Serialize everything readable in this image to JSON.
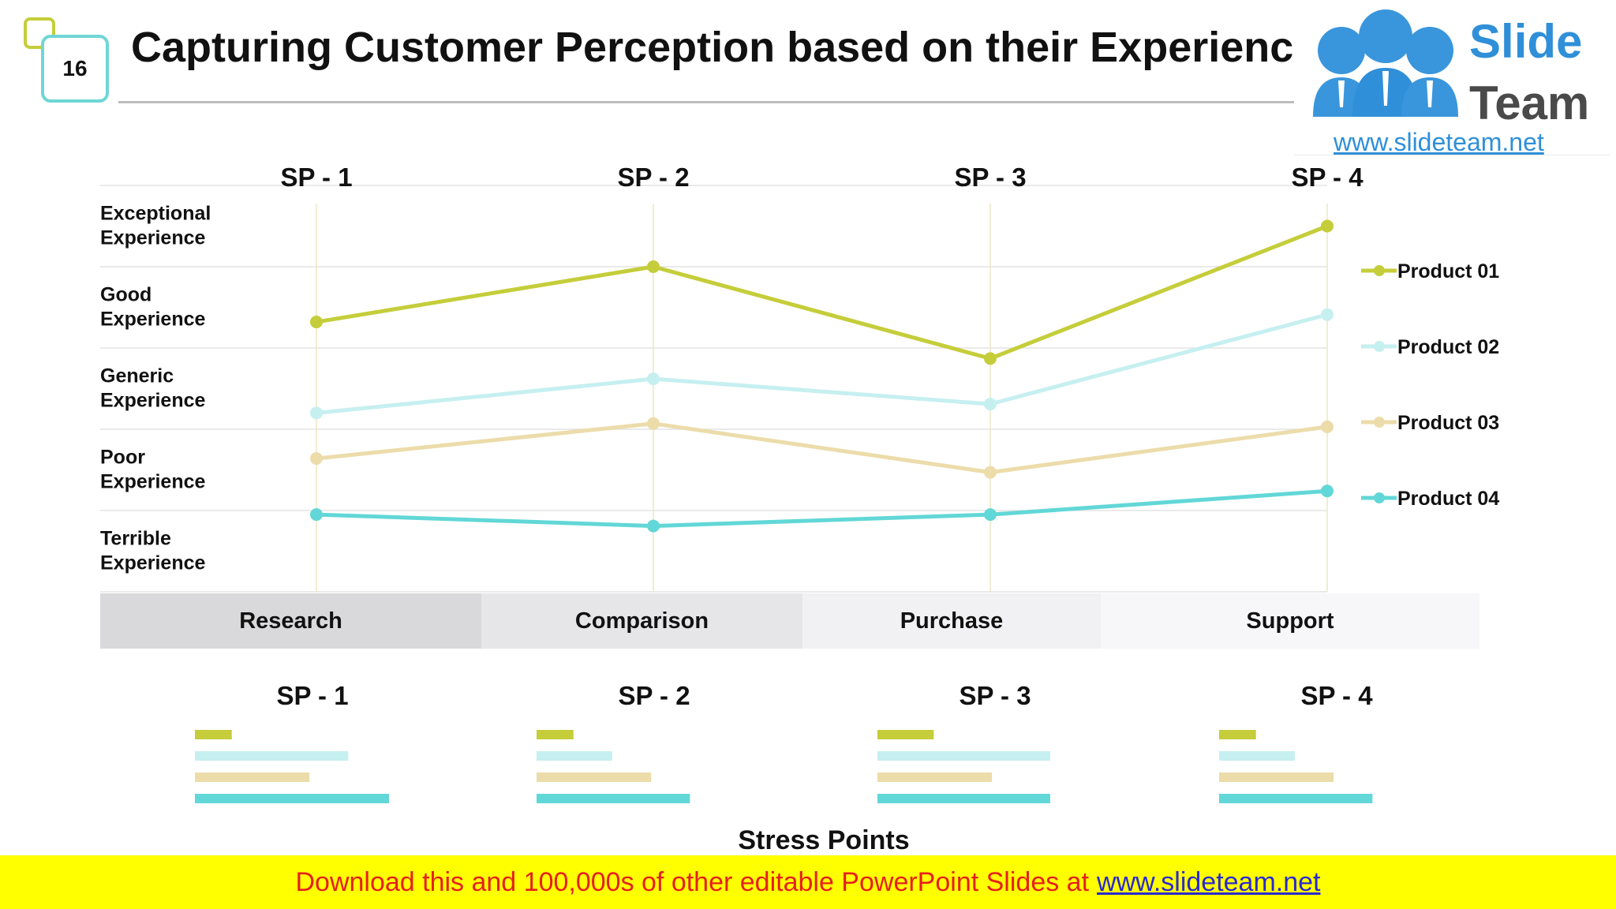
{
  "slide": {
    "number": "16",
    "title": "Capturing Customer Perception based on their Experience"
  },
  "logo": {
    "brand_top": "Slide",
    "brand_bottom": "Team",
    "url": "www.slideteam.net",
    "icon": "three-people-icon"
  },
  "banner": {
    "text": "Download this and 100,000s of other editable PowerPoint Slides at",
    "link": "www.slideteam.net"
  },
  "stages": [
    "Research",
    "Comparison",
    "Purchase",
    "Support"
  ],
  "stage_colors": [
    "#d9d9db",
    "#e6e6e9",
    "#f1f1f3",
    "#f7f7f9"
  ],
  "chart_data": [
    {
      "type": "line",
      "title": "",
      "categories": [
        "SP - 1",
        "SP - 2",
        "SP - 3",
        "SP - 4"
      ],
      "y_categories": [
        "Terrible Experience",
        "Poor Experience",
        "Generic Experience",
        "Good Experience",
        "Exceptional Experience"
      ],
      "ylim": [
        0,
        5
      ],
      "legend_position": "right",
      "series": [
        {
          "name": "Product 01",
          "color": "#c5cd3a",
          "values": [
            3.32,
            4.0,
            2.87,
            4.5
          ]
        },
        {
          "name": "Product 02",
          "color": "#c6eff0",
          "values": [
            2.2,
            2.62,
            2.31,
            3.41
          ]
        },
        {
          "name": "Product 03",
          "color": "#ecdcaa",
          "values": [
            1.64,
            2.07,
            1.47,
            2.03
          ]
        },
        {
          "name": "Product 04",
          "color": "#62d7d7",
          "values": [
            0.95,
            0.81,
            0.95,
            1.24
          ]
        }
      ]
    },
    {
      "type": "bar",
      "title": "Stress Points",
      "orientation": "horizontal",
      "groups": [
        "SP - 1",
        "SP - 2",
        "SP - 3",
        "SP - 4"
      ],
      "xlim": [
        0,
        1
      ],
      "series": [
        {
          "name": "Product 01",
          "color": "#c5cd3a",
          "values": [
            0.19,
            0.19,
            0.29,
            0.19
          ]
        },
        {
          "name": "Product 02",
          "color": "#c6eff0",
          "values": [
            0.79,
            0.39,
            0.89,
            0.39
          ]
        },
        {
          "name": "Product 03",
          "color": "#ecdcaa",
          "values": [
            0.59,
            0.59,
            0.59,
            0.59
          ]
        },
        {
          "name": "Product 04",
          "color": "#62d7d7",
          "values": [
            1.0,
            0.79,
            0.89,
            0.79
          ]
        }
      ]
    }
  ]
}
